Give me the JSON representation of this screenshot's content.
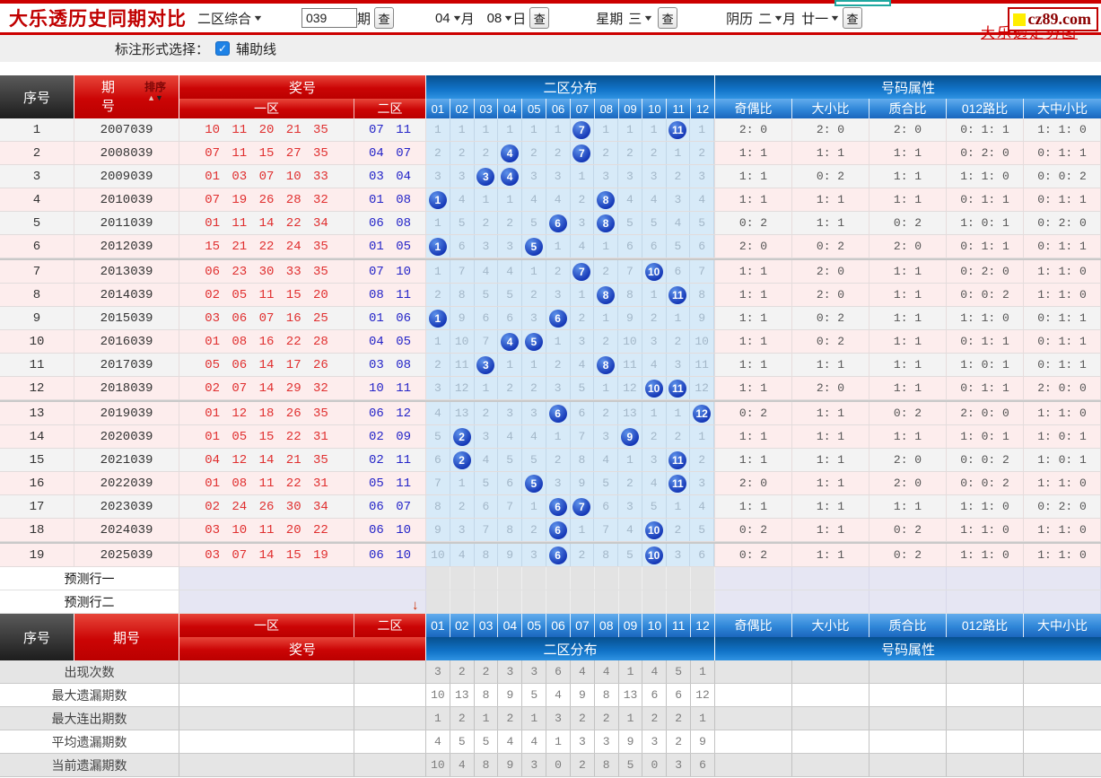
{
  "header": {
    "title": "大乐透历史同期对比",
    "mode_select": "二区综合",
    "period_input": "039",
    "period_unit": "期",
    "search_button": "查",
    "month_select": "04",
    "month_label": "月",
    "day_select": "08",
    "day_label": "日",
    "week_label": "星期",
    "week_select": "三",
    "lunar_label": "阴历",
    "lunar_month_select": "二",
    "lunar_month_unit": "月",
    "lunar_day_select": "廿一",
    "logo_text": "cz89.com",
    "logo_back_text": "大乐透走势图"
  },
  "toolbar": {
    "mark_label": "标注形式选择：",
    "aux_line_label": "辅助线",
    "aux_line_checked": true
  },
  "colors": {
    "accent_red": "#cc0000",
    "header_blue": "#1173c8",
    "ball_blue": "#1335b5",
    "front_number_red": "#e02f2f",
    "back_number_blue": "#2525c8",
    "zone_cell_blue": "#d7eaf8",
    "row_pink": "#fdeded",
    "row_gray": "#f3f3f3"
  },
  "table": {
    "headers": {
      "index": "序号",
      "period": "期号",
      "period_line1": "期",
      "period_line2": "号",
      "sort": "排序",
      "prize": "奖号",
      "zone1": "一区",
      "zone2": "二区",
      "zone2_dist": "二区分布",
      "zone_cols": [
        "01",
        "02",
        "03",
        "04",
        "05",
        "06",
        "07",
        "08",
        "09",
        "10",
        "11",
        "12"
      ],
      "attr_group": "号码属性",
      "attr_cols": [
        "奇偶比",
        "大小比",
        "质合比",
        "012路比",
        "大中小比"
      ]
    },
    "rows": [
      {
        "seq": "1",
        "period": "2007039",
        "front": "10 11 20 21 35",
        "back": "07 11",
        "zone": [
          "1",
          "1",
          "1",
          "1",
          "1",
          "1",
          "B7",
          "1",
          "1",
          "1",
          "B11",
          "1"
        ],
        "attrs": [
          "2: 0",
          "2: 0",
          "2: 0",
          "0: 1: 1",
          "1: 1: 0"
        ],
        "shade": "gray",
        "group_end": false
      },
      {
        "seq": "2",
        "period": "2008039",
        "front": "07 11 15 27 35",
        "back": "04 07",
        "zone": [
          "2",
          "2",
          "2",
          "B4",
          "2",
          "2",
          "B7",
          "2",
          "2",
          "2",
          "1",
          "2"
        ],
        "attrs": [
          "1: 1",
          "1: 1",
          "1: 1",
          "0: 2: 0",
          "0: 1: 1"
        ],
        "shade": "pink",
        "group_end": false
      },
      {
        "seq": "3",
        "period": "2009039",
        "front": "01 03 07 10 33",
        "back": "03 04",
        "zone": [
          "3",
          "3",
          "B3",
          "B4",
          "3",
          "3",
          "1",
          "3",
          "3",
          "3",
          "2",
          "3"
        ],
        "attrs": [
          "1: 1",
          "0: 2",
          "1: 1",
          "1: 1: 0",
          "0: 0: 2"
        ],
        "shade": "gray",
        "group_end": false
      },
      {
        "seq": "4",
        "period": "2010039",
        "front": "07 19 26 28 32",
        "back": "01 08",
        "zone": [
          "B1",
          "4",
          "1",
          "1",
          "4",
          "4",
          "2",
          "B8",
          "4",
          "4",
          "3",
          "4"
        ],
        "attrs": [
          "1: 1",
          "1: 1",
          "1: 1",
          "0: 1: 1",
          "0: 1: 1"
        ],
        "shade": "pink",
        "group_end": false
      },
      {
        "seq": "5",
        "period": "2011039",
        "front": "01 11 14 22 34",
        "back": "06 08",
        "zone": [
          "1",
          "5",
          "2",
          "2",
          "5",
          "B6",
          "3",
          "B8",
          "5",
          "5",
          "4",
          "5"
        ],
        "attrs": [
          "0: 2",
          "1: 1",
          "0: 2",
          "1: 0: 1",
          "0: 2: 0"
        ],
        "shade": "gray",
        "group_end": false
      },
      {
        "seq": "6",
        "period": "2012039",
        "front": "15 21 22 24 35",
        "back": "01 05",
        "zone": [
          "B1",
          "6",
          "3",
          "3",
          "B5",
          "1",
          "4",
          "1",
          "6",
          "6",
          "5",
          "6"
        ],
        "attrs": [
          "2: 0",
          "0: 2",
          "2: 0",
          "0: 1: 1",
          "0: 1: 1"
        ],
        "shade": "pink",
        "group_end": true
      },
      {
        "seq": "7",
        "period": "2013039",
        "front": "06 23 30 33 35",
        "back": "07 10",
        "zone": [
          "1",
          "7",
          "4",
          "4",
          "1",
          "2",
          "B7",
          "2",
          "7",
          "B10",
          "6",
          "7"
        ],
        "attrs": [
          "1: 1",
          "2: 0",
          "1: 1",
          "0: 2: 0",
          "1: 1: 0"
        ],
        "shade": "pink",
        "group_end": false
      },
      {
        "seq": "8",
        "period": "2014039",
        "front": "02 05 11 15 20",
        "back": "08 11",
        "zone": [
          "2",
          "8",
          "5",
          "5",
          "2",
          "3",
          "1",
          "B8",
          "8",
          "1",
          "B11",
          "8"
        ],
        "attrs": [
          "1: 1",
          "2: 0",
          "1: 1",
          "0: 0: 2",
          "1: 1: 0"
        ],
        "shade": "pink",
        "group_end": false
      },
      {
        "seq": "9",
        "period": "2015039",
        "front": "03 06 07 16 25",
        "back": "01 06",
        "zone": [
          "B1",
          "9",
          "6",
          "6",
          "3",
          "B6",
          "2",
          "1",
          "9",
          "2",
          "1",
          "9"
        ],
        "attrs": [
          "1: 1",
          "0: 2",
          "1: 1",
          "1: 1: 0",
          "0: 1: 1"
        ],
        "shade": "gray",
        "group_end": false
      },
      {
        "seq": "10",
        "period": "2016039",
        "front": "01 08 16 22 28",
        "back": "04 05",
        "zone": [
          "1",
          "10",
          "7",
          "B4",
          "B5",
          "1",
          "3",
          "2",
          "10",
          "3",
          "2",
          "10"
        ],
        "attrs": [
          "1: 1",
          "0: 2",
          "1: 1",
          "0: 1: 1",
          "0: 1: 1"
        ],
        "shade": "pink",
        "group_end": false
      },
      {
        "seq": "11",
        "period": "2017039",
        "front": "05 06 14 17 26",
        "back": "03 08",
        "zone": [
          "2",
          "11",
          "B3",
          "1",
          "1",
          "2",
          "4",
          "B8",
          "11",
          "4",
          "3",
          "11"
        ],
        "attrs": [
          "1: 1",
          "1: 1",
          "1: 1",
          "1: 0: 1",
          "0: 1: 1"
        ],
        "shade": "gray",
        "group_end": false
      },
      {
        "seq": "12",
        "period": "2018039",
        "front": "02 07 14 29 32",
        "back": "10 11",
        "zone": [
          "3",
          "12",
          "1",
          "2",
          "2",
          "3",
          "5",
          "1",
          "12",
          "B10",
          "B11",
          "12"
        ],
        "attrs": [
          "1: 1",
          "2: 0",
          "1: 1",
          "0: 1: 1",
          "2: 0: 0"
        ],
        "shade": "pink",
        "group_end": true
      },
      {
        "seq": "13",
        "period": "2019039",
        "front": "01 12 18 26 35",
        "back": "06 12",
        "zone": [
          "4",
          "13",
          "2",
          "3",
          "3",
          "B6",
          "6",
          "2",
          "13",
          "1",
          "1",
          "B12"
        ],
        "attrs": [
          "0: 2",
          "1: 1",
          "0: 2",
          "2: 0: 0",
          "1: 1: 0"
        ],
        "shade": "pink",
        "group_end": false
      },
      {
        "seq": "14",
        "period": "2020039",
        "front": "01 05 15 22 31",
        "back": "02 09",
        "zone": [
          "5",
          "B2",
          "3",
          "4",
          "4",
          "1",
          "7",
          "3",
          "B9",
          "2",
          "2",
          "1"
        ],
        "attrs": [
          "1: 1",
          "1: 1",
          "1: 1",
          "1: 0: 1",
          "1: 0: 1"
        ],
        "shade": "pink",
        "group_end": false
      },
      {
        "seq": "15",
        "period": "2021039",
        "front": "04 12 14 21 35",
        "back": "02 11",
        "zone": [
          "6",
          "B2",
          "4",
          "5",
          "5",
          "2",
          "8",
          "4",
          "1",
          "3",
          "B11",
          "2"
        ],
        "attrs": [
          "1: 1",
          "1: 1",
          "2: 0",
          "0: 0: 2",
          "1: 0: 1"
        ],
        "shade": "gray",
        "group_end": false
      },
      {
        "seq": "16",
        "period": "2022039",
        "front": "01 08 11 22 31",
        "back": "05 11",
        "zone": [
          "7",
          "1",
          "5",
          "6",
          "B5",
          "3",
          "9",
          "5",
          "2",
          "4",
          "B11",
          "3"
        ],
        "attrs": [
          "2: 0",
          "1: 1",
          "2: 0",
          "0: 0: 2",
          "1: 1: 0"
        ],
        "shade": "pink",
        "group_end": false
      },
      {
        "seq": "17",
        "period": "2023039",
        "front": "02 24 26 30 34",
        "back": "06 07",
        "zone": [
          "8",
          "2",
          "6",
          "7",
          "1",
          "B6",
          "B7",
          "6",
          "3",
          "5",
          "1",
          "4"
        ],
        "attrs": [
          "1: 1",
          "1: 1",
          "1: 1",
          "1: 1: 0",
          "0: 2: 0"
        ],
        "shade": "gray",
        "group_end": false
      },
      {
        "seq": "18",
        "period": "2024039",
        "front": "03 10 11 20 22",
        "back": "06 10",
        "zone": [
          "9",
          "3",
          "7",
          "8",
          "2",
          "B6",
          "1",
          "7",
          "4",
          "B10",
          "2",
          "5"
        ],
        "attrs": [
          "0: 2",
          "1: 1",
          "0: 2",
          "1: 1: 0",
          "1: 1: 0"
        ],
        "shade": "pink",
        "group_end": true
      },
      {
        "seq": "19",
        "period": "2025039",
        "front": "03 07 14 15 19",
        "back": "06 10",
        "zone": [
          "10",
          "4",
          "8",
          "9",
          "3",
          "B6",
          "2",
          "8",
          "5",
          "B10",
          "3",
          "6"
        ],
        "attrs": [
          "0: 2",
          "1: 1",
          "0: 2",
          "1: 1: 0",
          "1: 1: 0"
        ],
        "shade": "pink",
        "group_end": false
      }
    ],
    "prediction_rows": [
      "预测行一",
      "预测行二"
    ],
    "stats": [
      {
        "label": "出现次数",
        "values": [
          "3",
          "2",
          "2",
          "3",
          "3",
          "6",
          "4",
          "4",
          "1",
          "4",
          "5",
          "1"
        ]
      },
      {
        "label": "最大遗漏期数",
        "values": [
          "10",
          "13",
          "8",
          "9",
          "5",
          "4",
          "9",
          "8",
          "13",
          "6",
          "6",
          "12"
        ]
      },
      {
        "label": "最大连出期数",
        "values": [
          "1",
          "2",
          "1",
          "2",
          "1",
          "3",
          "2",
          "2",
          "1",
          "2",
          "2",
          "1"
        ]
      },
      {
        "label": "平均遗漏期数",
        "values": [
          "4",
          "5",
          "5",
          "4",
          "4",
          "1",
          "3",
          "3",
          "9",
          "3",
          "2",
          "9"
        ]
      },
      {
        "label": "当前遗漏期数",
        "values": [
          "10",
          "4",
          "8",
          "9",
          "3",
          "0",
          "2",
          "8",
          "5",
          "0",
          "3",
          "6"
        ]
      }
    ]
  }
}
